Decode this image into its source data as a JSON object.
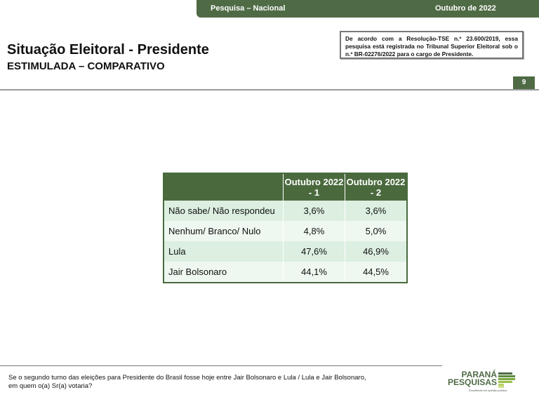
{
  "header": {
    "left": "Pesquisa – Nacional",
    "right": "Outubro de 2022"
  },
  "title": "Situação Eleitoral - Presidente",
  "subtitle": "ESTIMULADA – COMPARATIVO",
  "notice": "De acordo com a Resolução-TSE n.º 23.600/2019, essa pesquisa está registrada no Tribunal Superior Eleitoral sob o n.º BR-02276/2022 para o cargo de Presidente.",
  "page_number": "9",
  "table": {
    "columns": [
      "Outubro 2022 - 1",
      "Outubro 2022 - 2"
    ],
    "rows": [
      {
        "label": "Não sabe/ Não respondeu",
        "v1": "3,6%",
        "v2": "3,6%"
      },
      {
        "label": "Nenhum/ Branco/ Nulo",
        "v1": "4,8%",
        "v2": "5,0%"
      },
      {
        "label": "Lula",
        "v1": "47,6%",
        "v2": "46,9%"
      },
      {
        "label": "Jair Bolsonaro",
        "v1": "44,1%",
        "v2": "44,5%"
      }
    ]
  },
  "footer": {
    "line1": "Se o segundo turno das eleições para Presidente do Brasil fosse hoje entre Jair Bolsonaro e Lula / Lula e Jair Bolsonaro,",
    "line2": "em quem o(a) Sr(a) votaria?"
  },
  "logo": {
    "line1": "PARANÁ",
    "line2": "PESQUISAS",
    "tagline": "Excelência em opinião pública."
  }
}
